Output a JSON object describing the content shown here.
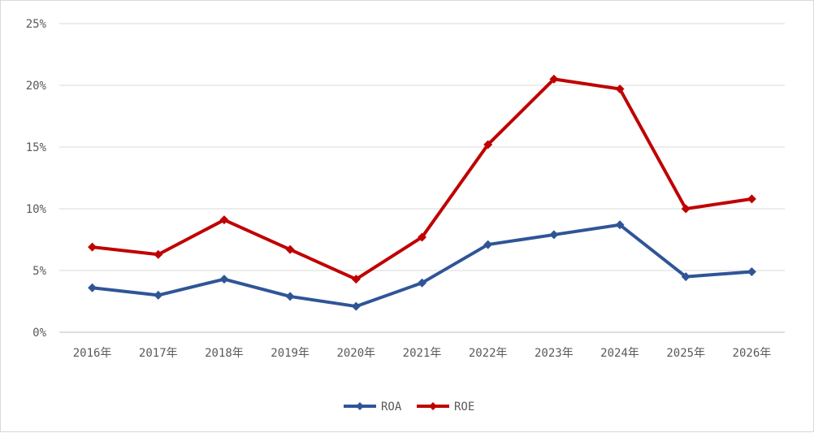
{
  "chart_data": {
    "type": "line",
    "categories": [
      "2016年",
      "2017年",
      "2018年",
      "2019年",
      "2020年",
      "2021年",
      "2022年",
      "2023年",
      "2024年",
      "2025年",
      "2026年"
    ],
    "series": [
      {
        "name": "ROA",
        "color": "#2f5597",
        "marker": "diamond",
        "values": [
          3.6,
          3.0,
          4.3,
          2.9,
          2.1,
          4.0,
          7.1,
          7.9,
          8.7,
          4.5,
          4.9
        ]
      },
      {
        "name": "ROE",
        "color": "#c00000",
        "marker": "diamond",
        "values": [
          6.9,
          6.3,
          9.1,
          6.7,
          4.3,
          7.7,
          15.2,
          20.5,
          19.7,
          10.0,
          10.8
        ]
      }
    ],
    "yticks": [
      "0%",
      "5%",
      "10%",
      "15%",
      "20%",
      "25%"
    ],
    "ylim": [
      0,
      25
    ],
    "grid": true,
    "legend_position": "bottom"
  }
}
